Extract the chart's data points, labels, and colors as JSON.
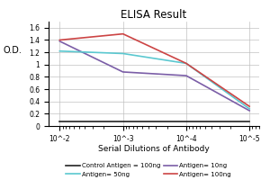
{
  "title": "ELISA Result",
  "ylabel": "O.D.",
  "xlabel": "Serial Dilutions of Antibody",
  "x_values": [
    0.01,
    0.001,
    0.0001,
    1e-05
  ],
  "x_tick_labels": [
    "10^-2",
    "10^-3",
    "10^-4",
    "10^-5"
  ],
  "lines": [
    {
      "label": "Control Antigen = 100ng",
      "color": "#222222",
      "y_values": [
        0.08,
        0.08,
        0.08,
        0.08
      ]
    },
    {
      "label": "Antigen= 10ng",
      "color": "#7b5ea7",
      "y_values": [
        1.38,
        0.88,
        0.82,
        0.25
      ]
    },
    {
      "label": "Antigen= 50ng",
      "color": "#5bc8d0",
      "y_values": [
        1.22,
        1.18,
        1.02,
        0.28
      ]
    },
    {
      "label": "Antigen= 100ng",
      "color": "#cc4444",
      "y_values": [
        1.4,
        1.5,
        1.02,
        0.32
      ]
    }
  ],
  "ylim": [
    0,
    1.7
  ],
  "yticks": [
    0,
    0.2,
    0.4,
    0.6,
    0.8,
    1.0,
    1.2,
    1.4,
    1.6
  ],
  "ytick_labels": [
    "0",
    "0.2",
    "0.4",
    "0.6",
    "0.8",
    "1",
    "1.2",
    "1.4",
    "1.6"
  ],
  "background_color": "#ffffff",
  "grid_color": "#bbbbbb"
}
